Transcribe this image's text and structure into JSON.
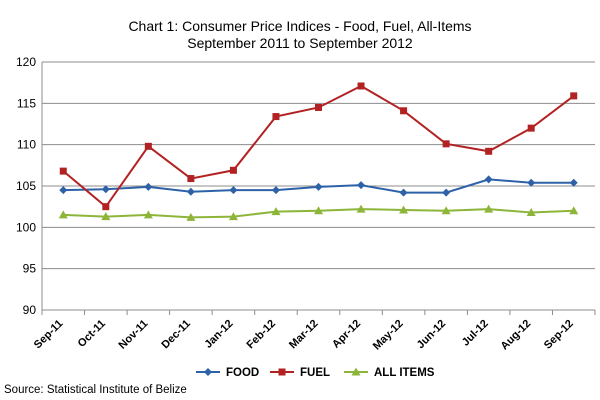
{
  "chart_data": {
    "type": "line",
    "title": "Chart 1: Consumer Price Indices - Food, Fuel, All-Items",
    "subtitle": "September 2011 to September 2012",
    "source": "Source: Statistical Institute of Belize",
    "categories": [
      "Sep-11",
      "Oct-11",
      "Nov-11",
      "Dec-11",
      "Jan-12",
      "Feb-12",
      "Mar-12",
      "Apr-12",
      "May-12",
      "Jun-12",
      "Jul-12",
      "Aug-12",
      "Sep-12"
    ],
    "ylim": [
      90,
      120
    ],
    "yticks": [
      90,
      95,
      100,
      105,
      110,
      115,
      120
    ],
    "grid": true,
    "legend": "bottom",
    "series": [
      {
        "name": "FOOD",
        "color": "#2e62a8",
        "marker": "diamond",
        "values": [
          104.5,
          104.6,
          104.9,
          104.3,
          104.5,
          104.5,
          104.9,
          105.1,
          104.2,
          104.2,
          105.8,
          105.4,
          105.4
        ]
      },
      {
        "name": "FUEL",
        "color": "#b22222",
        "marker": "square",
        "values": [
          106.8,
          102.5,
          109.8,
          105.9,
          106.9,
          113.4,
          114.5,
          117.1,
          114.1,
          110.1,
          109.2,
          112.0,
          115.9
        ]
      },
      {
        "name": "ALL ITEMS",
        "color": "#8db53a",
        "marker": "triangle",
        "values": [
          101.5,
          101.3,
          101.5,
          101.2,
          101.3,
          101.9,
          102.0,
          102.2,
          102.1,
          102.0,
          102.2,
          101.8,
          102.0
        ]
      }
    ]
  }
}
